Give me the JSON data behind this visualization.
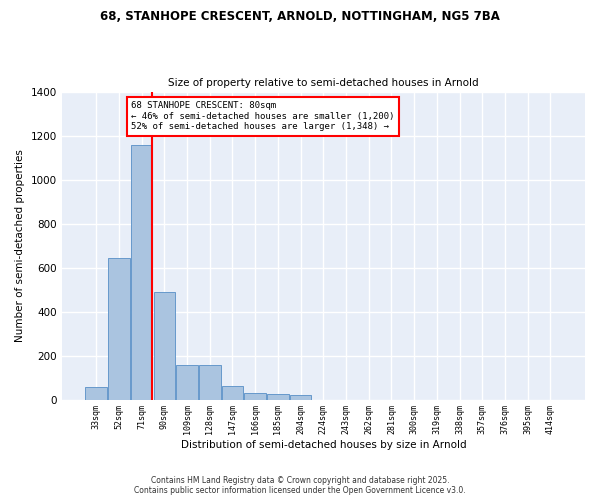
{
  "title_line1": "68, STANHOPE CRESCENT, ARNOLD, NOTTINGHAM, NG5 7BA",
  "title_line2": "Size of property relative to semi-detached houses in Arnold",
  "xlabel": "Distribution of semi-detached houses by size in Arnold",
  "ylabel": "Number of semi-detached properties",
  "bar_values": [
    55,
    645,
    1155,
    490,
    155,
    155,
    60,
    30,
    25,
    20,
    0,
    0,
    0,
    0,
    0,
    0,
    0,
    0,
    0,
    0,
    0
  ],
  "categories": [
    "33sqm",
    "52sqm",
    "71sqm",
    "90sqm",
    "109sqm",
    "128sqm",
    "147sqm",
    "166sqm",
    "185sqm",
    "204sqm",
    "224sqm",
    "243sqm",
    "262sqm",
    "281sqm",
    "300sqm",
    "319sqm",
    "338sqm",
    "357sqm",
    "376sqm",
    "395sqm",
    "414sqm"
  ],
  "bar_color": "#aac4e0",
  "bar_edge_color": "#6699cc",
  "vline_color": "red",
  "annotation_text": "68 STANHOPE CRESCENT: 80sqm\n← 46% of semi-detached houses are smaller (1,200)\n52% of semi-detached houses are larger (1,348) →",
  "annotation_box_color": "white",
  "annotation_box_edge": "red",
  "ylim": [
    0,
    1400
  ],
  "yticks": [
    0,
    200,
    400,
    600,
    800,
    1000,
    1200,
    1400
  ],
  "background_color": "#e8eef8",
  "grid_color": "white",
  "footer_line1": "Contains HM Land Registry data © Crown copyright and database right 2025.",
  "footer_line2": "Contains public sector information licensed under the Open Government Licence v3.0."
}
